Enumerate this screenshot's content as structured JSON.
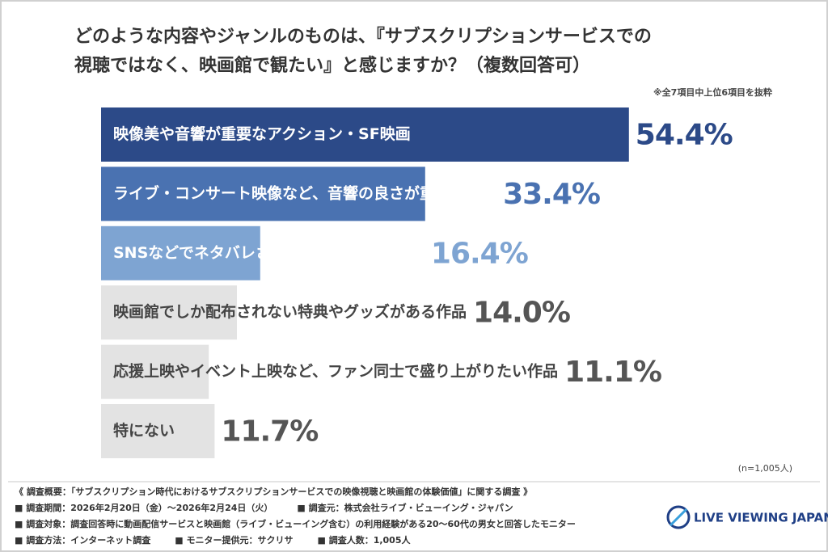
{
  "chart_data": {
    "type": "bar",
    "orientation": "horizontal",
    "title": [
      "どのような内容やジャンルのものは、『サブスクリプションサービスでの",
      "視聴ではなく、映画館で観たい』と感じますか？（複数回答可）"
    ],
    "note": "※全7項目中上位6項目を抜粋",
    "categories": [
      "映像美や音響が重要なアクション・SF映画",
      "ライブ・コンサート映像など、音響の良さが重要な作品",
      "SNSなどでネタバレされる前に観たい最新作",
      "映画館でしか配布されない特典やグッズがある作品",
      "応援上映やイベント上映など、ファン同士で盛り上がりたい作品",
      "特にない"
    ],
    "values": [
      54.4,
      33.4,
      16.4,
      14,
      11.1,
      11.7
    ],
    "value_labels": [
      "54.4%",
      "33.4%",
      "16.4%",
      "14.0%",
      "11.1%",
      "11.7%"
    ],
    "colors": [
      "#2c4a88",
      "#4a72b1",
      "#7ea4d2",
      "#e3e3e3",
      "#e3e3e3",
      "#e3e3e3"
    ],
    "label_colors": [
      "#ffffff",
      "#ffffff",
      "#ffffff",
      "#444444",
      "#444444",
      "#444444"
    ],
    "value_colors": [
      "#2c4a88",
      "#4a72b1",
      "#7ea4d2",
      "#555555",
      "#555555",
      "#555555"
    ],
    "sample": "(n=1,005人)"
  },
  "footer": {
    "lines": [
      [
        "《 調査概要：「サブスクリプション時代におけるサブスクリプションサービスでの映像視聴と映画館の体験価値」に関する調査 》"
      ],
      [
        "■ 調査期間：2026年2月20日（金）〜2026年2月24日（火）",
        "■ 調査元：株式会社ライブ・ビューイング・ジャパン"
      ],
      [
        "■ 調査対象：調査回答時に動画配信サービスと映画館（ライブ・ビューイング含む）の利用経験がある20〜60代の男女と回答したモニター"
      ],
      [
        "■ 調査方法：インターネット調査",
        "■ モニター提供元：サクリサ",
        "■ 調査人数：1,005人"
      ]
    ],
    "logo": "LIVE VIEWING JAPAN"
  }
}
